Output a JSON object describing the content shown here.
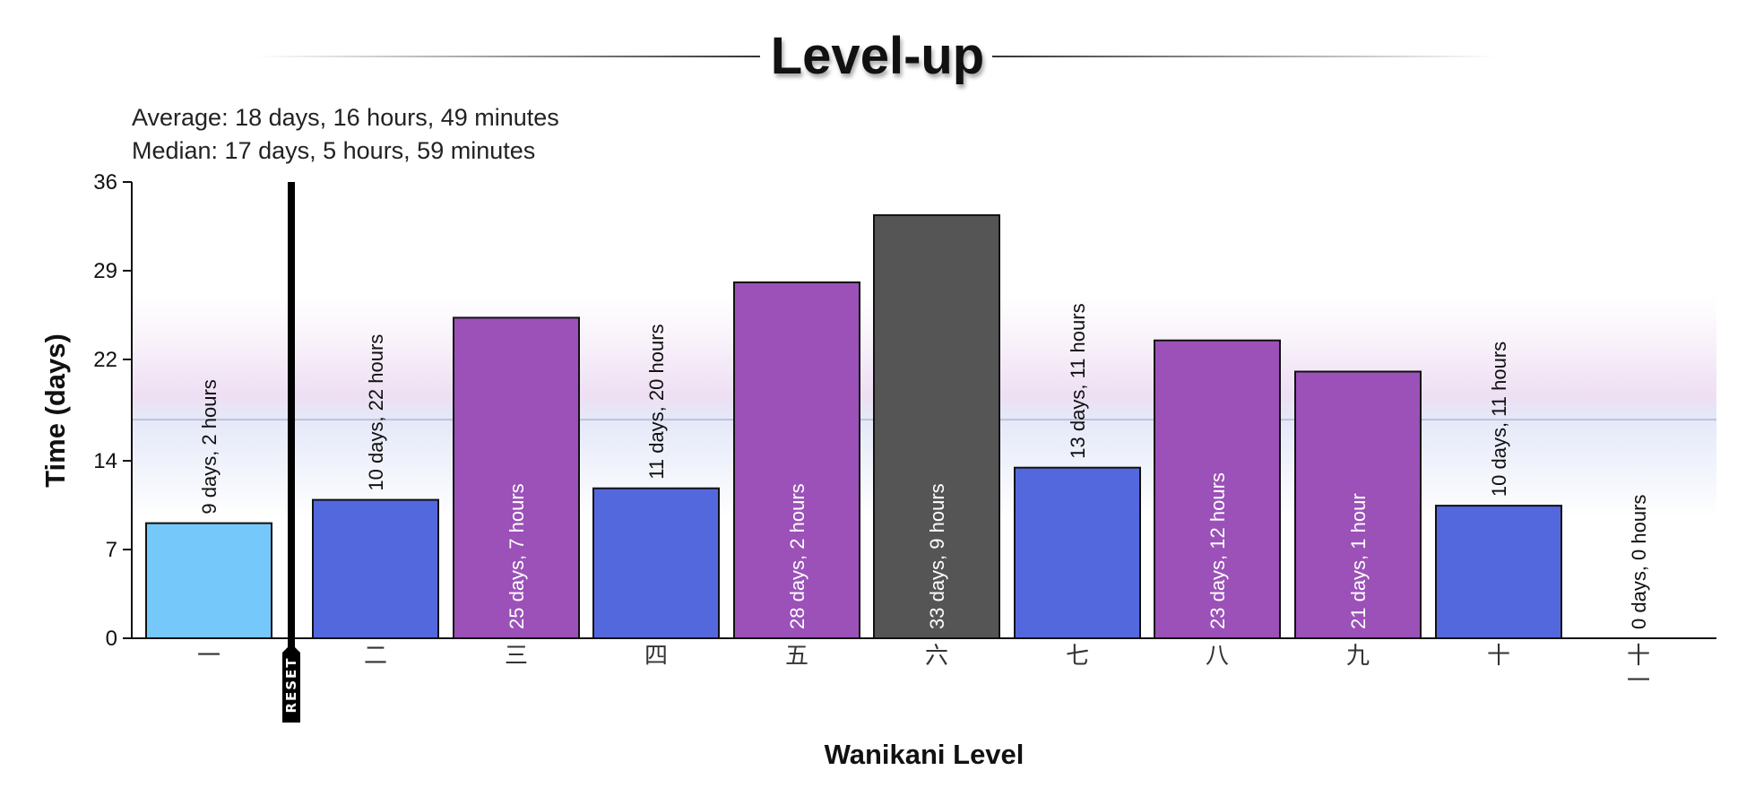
{
  "title": "Level-up",
  "stats": {
    "average": "Average: 18 days, 16 hours, 49 minutes",
    "median": "Median: 17 days, 5 hours, 59 minutes"
  },
  "chart_data": {
    "type": "bar",
    "xlabel": "Wanikani Level",
    "ylabel": "Time (days)",
    "ylim": [
      0,
      36
    ],
    "yticks": [
      "0",
      "7",
      "14",
      "22",
      "29",
      "36"
    ],
    "categories": [
      "一",
      "二",
      "三",
      "四",
      "五",
      "六",
      "七",
      "八",
      "九",
      "十",
      "十一"
    ],
    "values": [
      9.08,
      10.92,
      25.29,
      11.83,
      28.08,
      33.38,
      13.46,
      23.5,
      21.04,
      10.46,
      0
    ],
    "labels": [
      "9 days, 2 hours",
      "10 days, 22 hours",
      "25 days, 7 hours",
      "11 days, 20 hours",
      "28 days, 2 hours",
      "33 days, 9 hours",
      "13 days, 11 hours",
      "23 days, 12 hours",
      "21 days, 1 hour",
      "10 days, 11 hours",
      "0 days, 0 hours"
    ],
    "colors": [
      "#74c8fa",
      "#5468de",
      "#9b51b8",
      "#5468de",
      "#9b51b8",
      "#555555",
      "#5468de",
      "#9b51b8",
      "#9b51b8",
      "#5468de",
      "#5468de"
    ],
    "median_value": 17.25,
    "highlight_band": [
      9.5,
      27
    ],
    "reset_marker": {
      "after_category_index": 0,
      "label": "RESET",
      "color": "#000000"
    },
    "grid": false,
    "legend": "none"
  }
}
